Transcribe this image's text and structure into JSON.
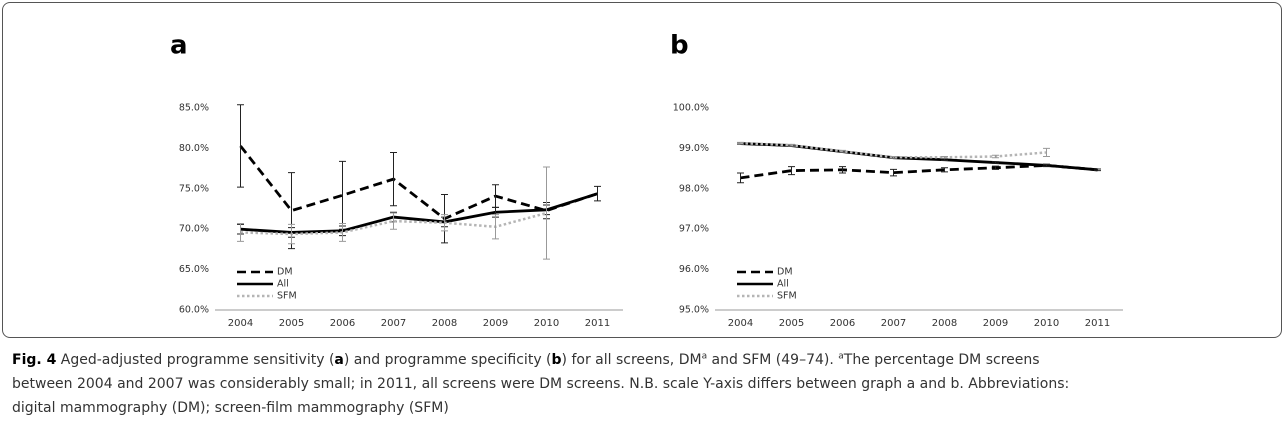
{
  "chart_data": [
    {
      "type": "line",
      "title": "a",
      "categories": [
        "2004",
        "2005",
        "2006",
        "2007",
        "2008",
        "2009",
        "2010",
        "2011"
      ],
      "ylim": [
        60,
        85
      ],
      "yticks": [
        {
          "value": 60,
          "label": "60.0%"
        },
        {
          "value": 65,
          "label": "65.0%"
        },
        {
          "value": 70,
          "label": "70.0%"
        },
        {
          "value": 75,
          "label": "75.0%"
        },
        {
          "value": 80,
          "label": "80.0%"
        },
        {
          "value": 85,
          "label": "85.0%"
        }
      ],
      "grid": false,
      "legend": "lower left",
      "series": [
        {
          "name": "DM",
          "color": "#000000",
          "style": "dashed",
          "values": [
            80.3,
            72.3,
            74.2,
            76.2,
            71.3,
            74.1,
            72.3,
            74.4
          ],
          "errors": [
            5.1,
            4.7,
            4.2,
            3.3,
            3.0,
            1.4,
            1.0,
            null
          ]
        },
        {
          "name": "All",
          "color": "#000000",
          "style": "solid",
          "values": [
            70.0,
            69.6,
            69.8,
            71.5,
            70.9,
            72.1,
            72.4,
            74.4
          ],
          "errors": [
            0.6,
            0.6,
            0.6,
            0.6,
            0.6,
            0.6,
            0.6,
            0.9
          ]
        },
        {
          "name": "SFM",
          "color": "#b5b5b5",
          "style": "dotted",
          "values": [
            69.6,
            69.4,
            69.6,
            71.0,
            70.8,
            70.3,
            72.0,
            null
          ],
          "errors": [
            1.1,
            1.2,
            1.1,
            1.0,
            1.0,
            1.5,
            5.7,
            null
          ]
        }
      ]
    },
    {
      "type": "line",
      "title": "b",
      "categories": [
        "2004",
        "2005",
        "2006",
        "2007",
        "2008",
        "2009",
        "2010",
        "2011"
      ],
      "ylim": [
        95,
        100
      ],
      "yticks": [
        {
          "value": 95,
          "label": "95.0%"
        },
        {
          "value": 96,
          "label": "96.0%"
        },
        {
          "value": 97,
          "label": "97.0%"
        },
        {
          "value": 98,
          "label": "98.0%"
        },
        {
          "value": 99,
          "label": "99.0%"
        },
        {
          "value": 100,
          "label": "100.0%"
        }
      ],
      "grid": false,
      "legend": "lower left",
      "series": [
        {
          "name": "DM",
          "color": "#000000",
          "style": "dashed",
          "values": [
            98.27,
            98.45,
            98.47,
            98.4,
            98.47,
            98.52,
            98.58,
            98.47
          ],
          "errors": [
            0.12,
            0.1,
            0.08,
            0.08,
            0.05,
            0.04,
            0.03,
            null
          ]
        },
        {
          "name": "All",
          "color": "#000000",
          "style": "solid",
          "values": [
            99.12,
            99.07,
            98.92,
            98.77,
            98.72,
            98.65,
            98.58,
            98.47
          ],
          "errors": [
            0.02,
            0.02,
            0.02,
            0.02,
            0.02,
            0.02,
            0.02,
            0.02
          ]
        },
        {
          "name": "SFM",
          "color": "#b5b5b5",
          "style": "dotted",
          "values": [
            99.13,
            99.08,
            98.93,
            98.78,
            98.78,
            98.8,
            98.9,
            null
          ],
          "errors": [
            0.02,
            0.02,
            0.02,
            0.02,
            0.02,
            0.03,
            0.1,
            null
          ]
        }
      ]
    }
  ],
  "caption": [
    "Fig. 4",
    " Aged-adjusted programme sensitivity (",
    "a",
    ") and programme specificity (",
    "b",
    ") for all screens, DM",
    "a",
    " and SFM (49–74). ",
    "a",
    "The percentage DM screens",
    "between 2004 and 2007 was considerably small; in 2011, all screens were DM screens. N.B. scale Y-axis differs between graph a and b. Abbreviations:",
    "digital mammography (DM); screen-film mammography (SFM)"
  ]
}
